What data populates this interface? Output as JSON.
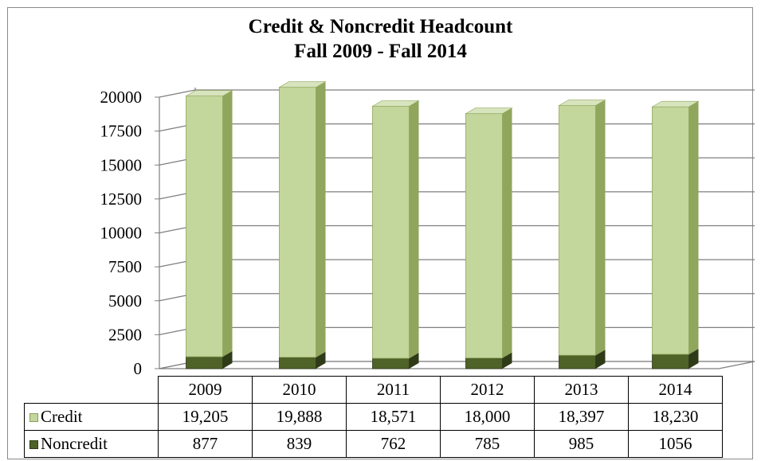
{
  "chart_data": {
    "type": "bar",
    "stacked": true,
    "three_d": true,
    "title": "Credit & Noncredit Headcount",
    "subtitle": "Fall 2009 - Fall 2014",
    "categories": [
      "2009",
      "2010",
      "2011",
      "2012",
      "2013",
      "2014"
    ],
    "series": [
      {
        "name": "Credit",
        "values": [
          19205,
          19888,
          18571,
          18000,
          18397,
          18230
        ],
        "labels": [
          "19,205",
          "19,888",
          "18,571",
          "18,000",
          "18,397",
          "18,230"
        ],
        "color": "#c3d69b"
      },
      {
        "name": "Noncredit",
        "values": [
          877,
          839,
          762,
          785,
          985,
          1056
        ],
        "labels": [
          "877",
          "839",
          "762",
          "785",
          "985",
          "1056"
        ],
        "color": "#4f6228"
      }
    ],
    "ylim": [
      0,
      20000
    ],
    "yticks": [
      "0",
      "2500",
      "5000",
      "7500",
      "10000",
      "12500",
      "15000",
      "17500",
      "20000"
    ],
    "grid": true,
    "legend": "data-table"
  }
}
